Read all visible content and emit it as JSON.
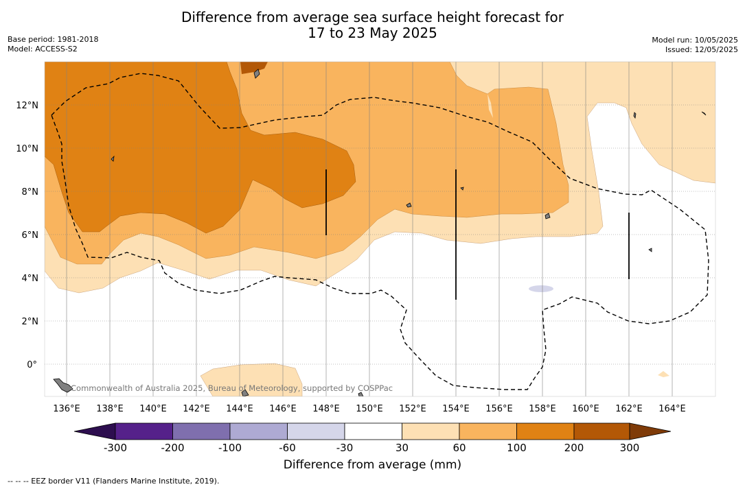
{
  "title_line1": "Difference from average sea surface height forecast for",
  "title_line2": "17 to 23 May 2025",
  "meta_left": {
    "base_period": "Base period: 1981-2018",
    "model": "Model: ACCESS-S2"
  },
  "meta_right": {
    "model_run": "Model run: 10/05/2025",
    "issued": "Issued: 12/05/2025"
  },
  "map": {
    "lon_ticks": [
      "136°E",
      "138°E",
      "140°E",
      "142°E",
      "144°E",
      "146°E",
      "148°E",
      "150°E",
      "152°E",
      "154°E",
      "156°E",
      "158°E",
      "160°E",
      "162°E",
      "164°E"
    ],
    "lat_ticks": [
      "12°N",
      "10°N",
      "8°N",
      "6°N",
      "4°N",
      "2°N",
      "0°"
    ],
    "copyright": "Commonwealth of Australia 2025, Bureau of Meteorology, supported by COSPPac"
  },
  "colorbar": {
    "ticks": [
      "-300",
      "-200",
      "-100",
      "-60",
      "-30",
      "30",
      "60",
      "100",
      "200",
      "300"
    ],
    "colors": [
      "#2d0e4f",
      "#55218a",
      "#7f6fae",
      "#aeaad3",
      "#d5d6ea",
      "#ffffff",
      "#fde0b4",
      "#f9b45e",
      "#e08214",
      "#b35806",
      "#7f3b08"
    ],
    "label": "Difference from average (mm)"
  },
  "footer": "--  --  -- EEZ border V11 (Flanders Marine Institute, 2019)."
}
